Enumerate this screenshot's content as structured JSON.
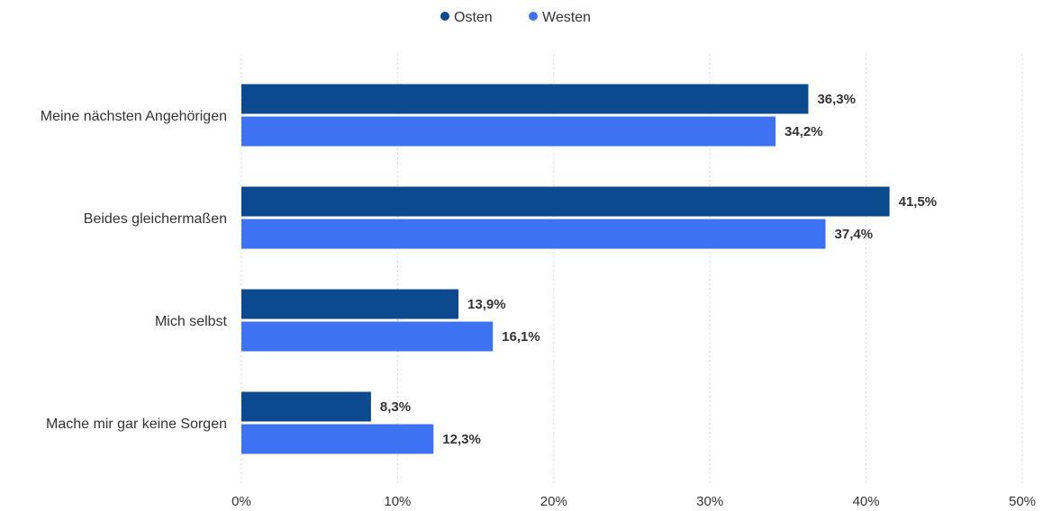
{
  "chart_data": {
    "type": "bar",
    "orientation": "horizontal",
    "categories": [
      "Meine nächsten Angehörigen",
      "Beides gleichermaßen",
      "Mich selbst",
      "Mache mir gar keine Sorgen"
    ],
    "series": [
      {
        "name": "Osten",
        "color": "#0b4a8f",
        "values": [
          36.3,
          41.5,
          13.9,
          8.3
        ],
        "labels": [
          "36,3%",
          "41,5%",
          "13,9%",
          "8,3%"
        ]
      },
      {
        "name": "Westen",
        "color": "#3d72f2",
        "values": [
          34.2,
          37.4,
          16.1,
          12.3
        ],
        "labels": [
          "34,2%",
          "37,4%",
          "16,1%",
          "12,3%"
        ]
      }
    ],
    "xlim": [
      0,
      50
    ],
    "xticks": [
      0,
      10,
      20,
      30,
      40,
      50
    ],
    "xtick_labels": [
      "0%",
      "10%",
      "20%",
      "30%",
      "40%",
      "50%"
    ],
    "legend_position": "top-center",
    "grid": true
  }
}
